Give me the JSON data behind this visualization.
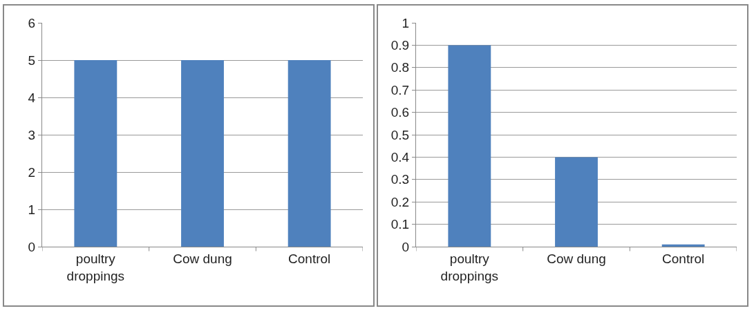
{
  "chart_data": [
    {
      "type": "bar",
      "categories": [
        "poultry droppings",
        "Cow dung",
        "Control"
      ],
      "values": [
        5,
        5,
        5
      ],
      "color": "#4f81bd",
      "ylim": [
        0,
        6
      ],
      "yticks": [
        0,
        1,
        2,
        3,
        4,
        5,
        6
      ],
      "grid": "y"
    },
    {
      "type": "bar",
      "categories": [
        "poultry droppings",
        "Cow dung",
        "Control"
      ],
      "values": [
        0.9,
        0.4,
        0.01
      ],
      "color": "#4f81bd",
      "ylim": [
        0,
        1
      ],
      "yticks": [
        0,
        0.1,
        0.2,
        0.3,
        0.4,
        0.5,
        0.6,
        0.7,
        0.8,
        0.9,
        1
      ],
      "grid": "y"
    }
  ]
}
